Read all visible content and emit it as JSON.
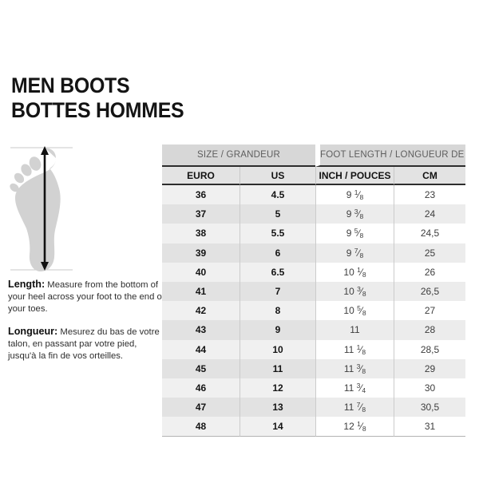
{
  "page": {
    "title_line1": "MEN BOOTS",
    "title_line2": "BOTTES HOMMES"
  },
  "figure": {
    "description": "foot sole silhouette with vertical measurement arrow",
    "arrow_icon": "vertical-double-arrow-icon",
    "foot_color": "#d2d2d2",
    "arrow_color": "#111111",
    "guide_line_color": "#c9c9c9"
  },
  "instructions": {
    "length_label": "Length:",
    "length_text": " Measure from the bottom of your heel across your foot to the end of your toes.",
    "longueur_label": "Longueur:",
    "longueur_text": " Mesurez du bas de votre talon, en passant par votre pied, jusqu'à la fin de vos orteilles."
  },
  "table": {
    "group_headers": [
      "SIZE / GRANDEUR",
      "FOOT LENGTH / LONGUEUR DE PIED"
    ],
    "column_headers": [
      "EURO",
      "US",
      "INCH / POUCES",
      "CM"
    ],
    "rows": [
      [
        "36",
        "4.5",
        "9 1/8",
        "23"
      ],
      [
        "37",
        "5",
        "9 3/8",
        "24"
      ],
      [
        "38",
        "5.5",
        "9 5/8",
        "24,5"
      ],
      [
        "39",
        "6",
        "9 7/8",
        "25"
      ],
      [
        "40",
        "6.5",
        "10 1/8",
        "26"
      ],
      [
        "41",
        "7",
        "10 3/8",
        "26,5"
      ],
      [
        "42",
        "8",
        "10 5/8",
        "27"
      ],
      [
        "43",
        "9",
        "11",
        "28"
      ],
      [
        "44",
        "10",
        "11 1/8",
        "28,5"
      ],
      [
        "45",
        "11",
        "11 3/8",
        "29"
      ],
      [
        "46",
        "12",
        "11 3/4",
        "30"
      ],
      [
        "47",
        "13",
        "11 7/8",
        "30,5"
      ],
      [
        "48",
        "14",
        "12 1/8",
        "31"
      ]
    ]
  },
  "colors": {
    "group_header_bg": "#d7d7d7",
    "column_header_bg": "#e3e3e3",
    "left_group_row_light": "#f0f0f0",
    "left_group_row_dark": "#e2e2e2",
    "right_group_row_light": "#ffffff",
    "right_group_row_dark": "#ececec",
    "header_rule": "#2d2d2d",
    "title_text": "#141414"
  }
}
